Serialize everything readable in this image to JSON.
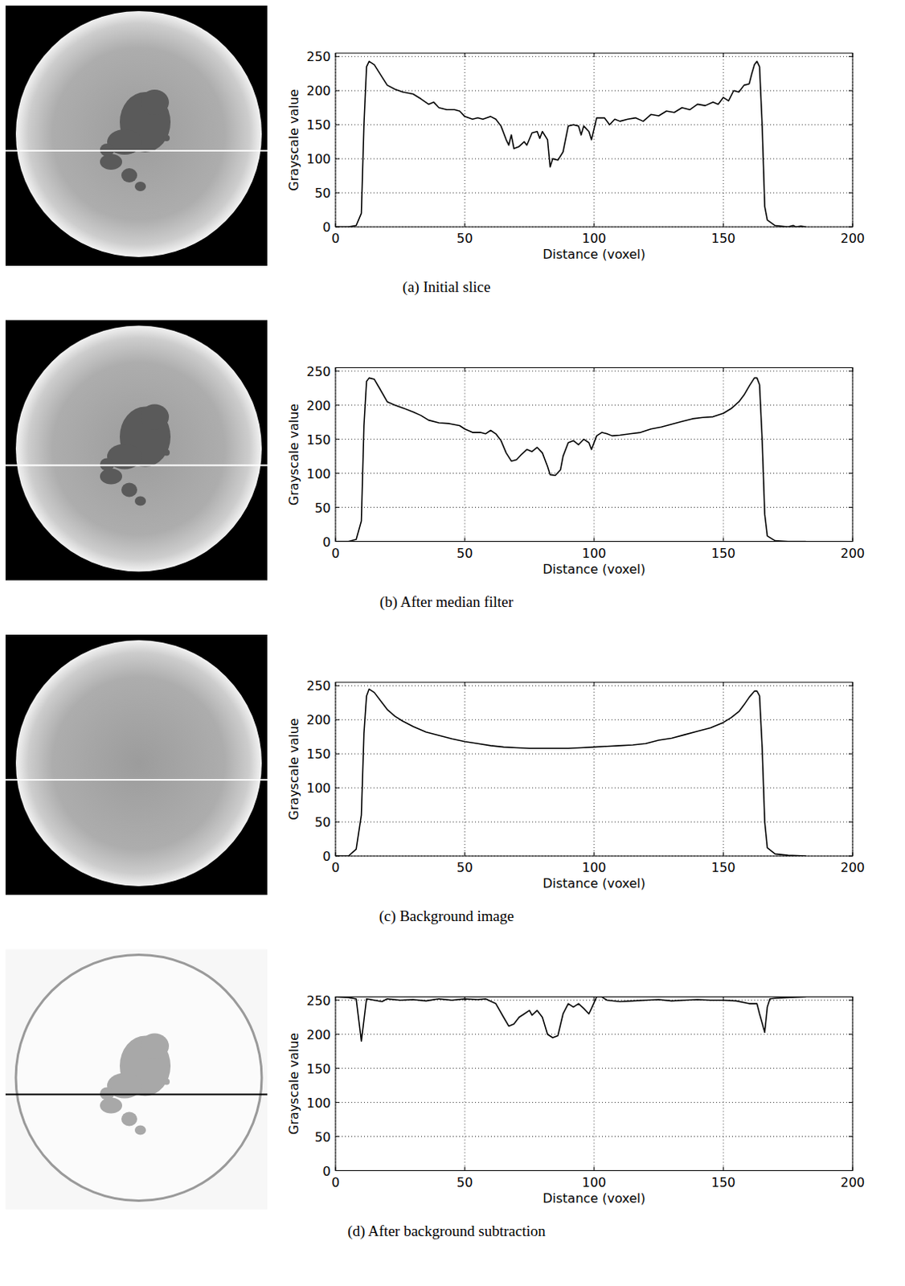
{
  "chart_data": [
    {
      "type": "line",
      "caption": "(a) Initial slice",
      "x_label": "Distance (voxel)",
      "y_label": "Grayscale value",
      "xlim": [
        0,
        200
      ],
      "ylim": [
        0,
        255
      ],
      "xticks": [
        0,
        50,
        100,
        150,
        200
      ],
      "yticks": [
        0,
        50,
        100,
        150,
        200,
        250
      ],
      "grid": true,
      "color": "#000000",
      "x": [
        0,
        5,
        8,
        10,
        11,
        12,
        13,
        15,
        18,
        20,
        23,
        26,
        30,
        33,
        36,
        38,
        40,
        43,
        46,
        48,
        50,
        53,
        55,
        57,
        60,
        62,
        64,
        66,
        67,
        68,
        69,
        71,
        73,
        74,
        76,
        78,
        79,
        80,
        82,
        83,
        84,
        86,
        88,
        90,
        92,
        94,
        95,
        96,
        98,
        99,
        101,
        104,
        106,
        108,
        110,
        113,
        116,
        119,
        122,
        125,
        128,
        131,
        134,
        137,
        140,
        143,
        146,
        148,
        150,
        152,
        154,
        156,
        158,
        160,
        161,
        162,
        163,
        164,
        165,
        166,
        167,
        170,
        175,
        177,
        178,
        180,
        182
      ],
      "values": [
        0,
        0,
        2,
        20,
        150,
        235,
        243,
        238,
        220,
        208,
        202,
        198,
        195,
        188,
        180,
        183,
        175,
        172,
        172,
        170,
        162,
        158,
        160,
        158,
        162,
        158,
        148,
        128,
        120,
        135,
        115,
        118,
        125,
        120,
        138,
        140,
        130,
        140,
        128,
        88,
        100,
        98,
        110,
        148,
        150,
        148,
        135,
        148,
        140,
        128,
        160,
        160,
        150,
        158,
        155,
        158,
        160,
        155,
        165,
        163,
        170,
        168,
        175,
        172,
        180,
        178,
        183,
        180,
        190,
        185,
        200,
        198,
        208,
        210,
        225,
        238,
        243,
        235,
        150,
        30,
        10,
        2,
        0,
        2,
        0,
        1,
        0
      ]
    },
    {
      "type": "line",
      "caption": "(b) After median filter",
      "x_label": "Distance (voxel)",
      "y_label": "Grayscale value",
      "xlim": [
        0,
        200
      ],
      "ylim": [
        0,
        255
      ],
      "xticks": [
        0,
        50,
        100,
        150,
        200
      ],
      "yticks": [
        0,
        50,
        100,
        150,
        200,
        250
      ],
      "grid": true,
      "color": "#000000",
      "x": [
        0,
        5,
        8,
        10,
        11,
        12,
        13,
        15,
        17,
        20,
        23,
        26,
        30,
        33,
        36,
        40,
        44,
        48,
        50,
        53,
        56,
        58,
        60,
        62,
        64,
        66,
        68,
        70,
        72,
        74,
        76,
        78,
        80,
        82,
        83,
        85,
        87,
        88,
        90,
        92,
        94,
        96,
        98,
        99,
        101,
        103,
        105,
        107,
        110,
        114,
        118,
        122,
        126,
        130,
        134,
        138,
        142,
        146,
        150,
        153,
        156,
        158,
        160,
        162,
        163,
        164,
        165,
        166,
        167,
        170,
        175,
        182
      ],
      "values": [
        0,
        0,
        3,
        30,
        170,
        235,
        240,
        238,
        225,
        205,
        200,
        196,
        190,
        185,
        178,
        174,
        173,
        170,
        165,
        160,
        160,
        158,
        163,
        158,
        148,
        130,
        118,
        120,
        128,
        135,
        132,
        138,
        130,
        110,
        98,
        97,
        105,
        125,
        145,
        148,
        142,
        150,
        145,
        135,
        155,
        160,
        158,
        155,
        156,
        158,
        160,
        165,
        168,
        172,
        176,
        180,
        182,
        183,
        188,
        195,
        205,
        215,
        228,
        240,
        240,
        230,
        150,
        40,
        8,
        1,
        0,
        0
      ]
    },
    {
      "type": "line",
      "caption": "(c) Background image",
      "x_label": "Distance (voxel)",
      "y_label": "Grayscale value",
      "xlim": [
        0,
        200
      ],
      "ylim": [
        0,
        255
      ],
      "xticks": [
        0,
        50,
        100,
        150,
        200
      ],
      "yticks": [
        0,
        50,
        100,
        150,
        200,
        250
      ],
      "grid": true,
      "color": "#000000",
      "x": [
        0,
        5,
        8,
        10,
        11,
        12,
        13,
        15,
        18,
        20,
        23,
        26,
        30,
        35,
        40,
        45,
        50,
        55,
        60,
        65,
        70,
        75,
        80,
        85,
        90,
        95,
        100,
        105,
        110,
        115,
        120,
        125,
        130,
        135,
        140,
        145,
        150,
        153,
        156,
        158,
        160,
        162,
        163,
        164,
        165,
        166,
        167,
        170,
        175,
        182
      ],
      "values": [
        0,
        0,
        10,
        60,
        180,
        235,
        245,
        240,
        225,
        215,
        205,
        198,
        190,
        182,
        177,
        172,
        168,
        165,
        162,
        160,
        159,
        158,
        158,
        158,
        158,
        159,
        160,
        161,
        162,
        163,
        165,
        170,
        173,
        178,
        183,
        188,
        196,
        203,
        212,
        222,
        233,
        242,
        242,
        235,
        160,
        50,
        12,
        3,
        1,
        0
      ]
    },
    {
      "type": "line",
      "caption": "(d) After background subtraction",
      "x_label": "Distance (voxel)",
      "y_label": "Grayscale value",
      "xlim": [
        0,
        200
      ],
      "ylim": [
        0,
        255
      ],
      "xticks": [
        0,
        50,
        100,
        150,
        200
      ],
      "yticks": [
        0,
        50,
        100,
        150,
        200,
        250
      ],
      "grid": true,
      "color": "#000000",
      "x": [
        0,
        5,
        8,
        10,
        12,
        15,
        18,
        20,
        25,
        30,
        35,
        40,
        45,
        50,
        55,
        58,
        62,
        65,
        67,
        69,
        71,
        73,
        75,
        76,
        78,
        80,
        82,
        84,
        86,
        88,
        90,
        92,
        94,
        96,
        98,
        99,
        101,
        103,
        105,
        110,
        115,
        120,
        125,
        130,
        135,
        140,
        145,
        150,
        155,
        160,
        163,
        164,
        166,
        167,
        168,
        170,
        175,
        182
      ],
      "values": [
        255,
        254,
        252,
        190,
        252,
        250,
        248,
        252,
        250,
        251,
        249,
        252,
        250,
        252,
        251,
        252,
        245,
        225,
        212,
        215,
        225,
        230,
        235,
        228,
        235,
        225,
        200,
        195,
        198,
        230,
        245,
        240,
        245,
        238,
        230,
        238,
        255,
        255,
        250,
        248,
        249,
        250,
        251,
        249,
        250,
        251,
        250,
        250,
        249,
        245,
        245,
        230,
        203,
        240,
        252,
        253,
        254,
        255
      ]
    }
  ]
}
